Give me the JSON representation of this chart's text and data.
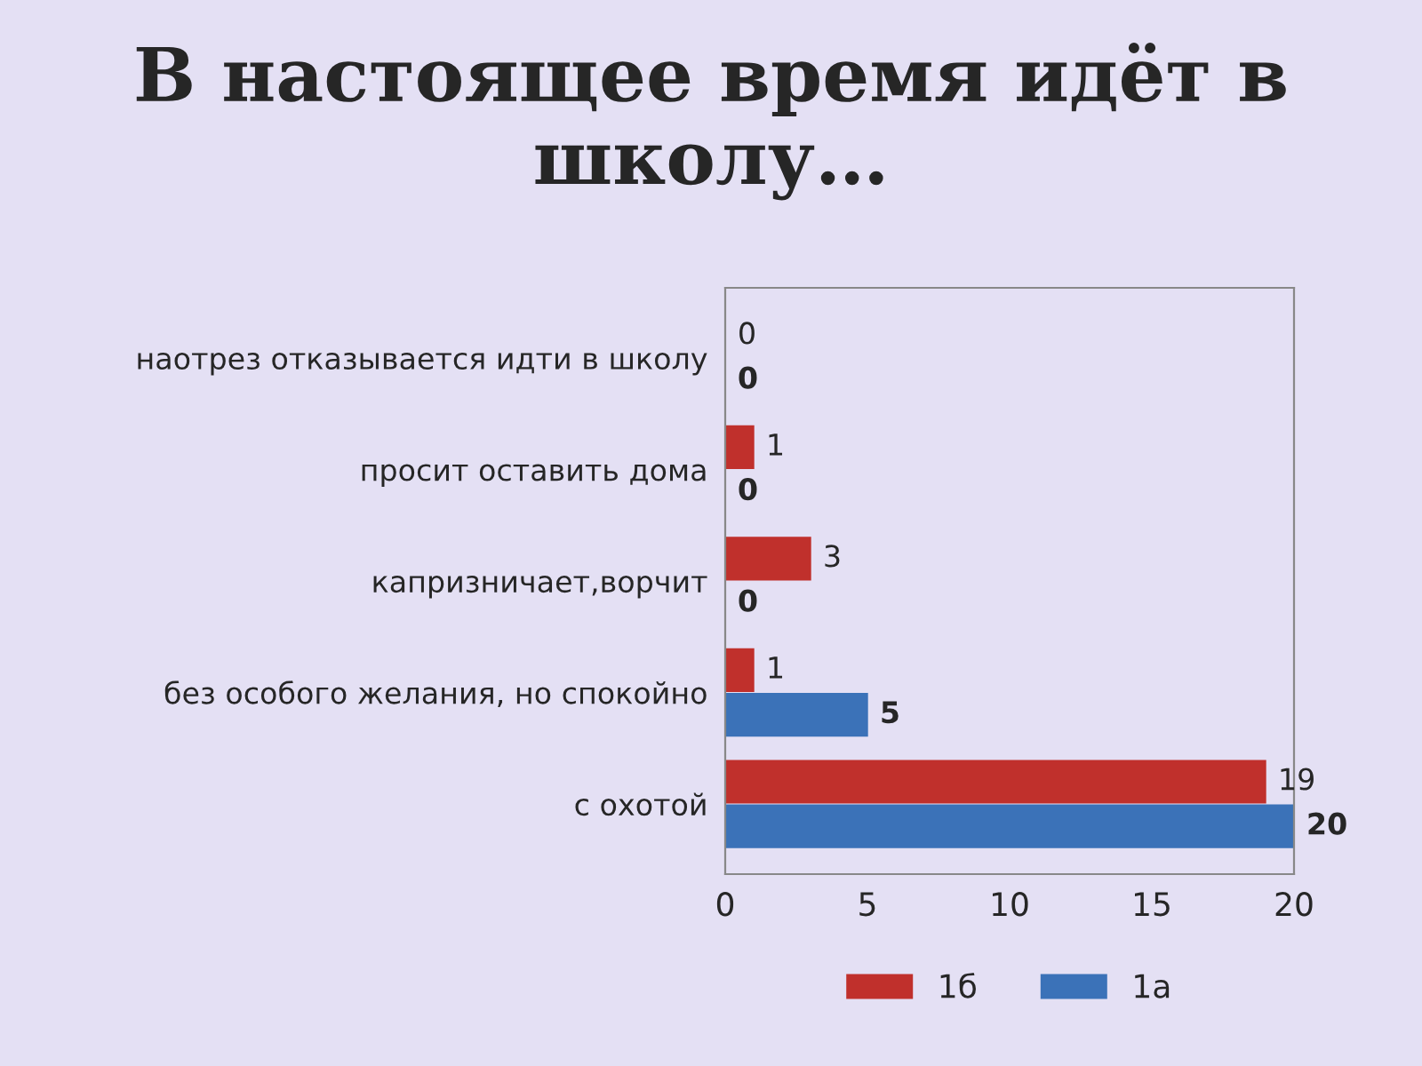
{
  "chart_data": {
    "type": "bar",
    "orientation": "horizontal",
    "title": "В настоящее время идёт в школу…",
    "categories": [
      "наотрез отказывается идти в школу",
      "просит оставить дома",
      "капризничает,ворчит",
      "без особого желания, но спокойно",
      "с охотой"
    ],
    "series": [
      {
        "name": "1б",
        "color": "#c0302c",
        "values": [
          0,
          1,
          3,
          1,
          19
        ]
      },
      {
        "name": "1а",
        "color": "#3b72b8",
        "values": [
          0,
          0,
          0,
          5,
          20
        ]
      }
    ],
    "xlim": [
      0,
      20
    ],
    "xticks": [
      0,
      5,
      10,
      15,
      20
    ],
    "data_labels": true,
    "legend": "bottom",
    "grid": false
  }
}
